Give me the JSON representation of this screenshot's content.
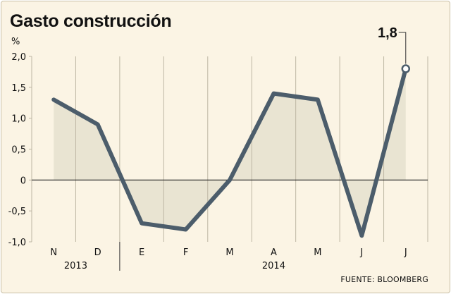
{
  "chart_data": {
    "type": "line",
    "title": "Gasto construcción",
    "ylabel": "%",
    "source": "FUENTE: BLOOMBERG",
    "categories": [
      "N",
      "D",
      "E",
      "F",
      "M",
      "A",
      "M",
      "J",
      "J"
    ],
    "years": [
      {
        "label": "2013",
        "from": 0,
        "to": 1
      },
      {
        "label": "2014",
        "from": 2,
        "to": 8
      }
    ],
    "series": [
      {
        "values": [
          1.3,
          0.9,
          -0.7,
          -0.8,
          0.0,
          1.4,
          1.3,
          -0.9,
          1.8
        ]
      }
    ],
    "yticks": [
      "2,0",
      "1,5",
      "1,0",
      "0,5",
      "0",
      "-0,5",
      "-1,0"
    ],
    "ylim": [
      -1.0,
      2.0
    ],
    "annotation": {
      "index": 8,
      "label": "1,8"
    },
    "grid": "vertical",
    "colors": {
      "line": "#4c5d6b",
      "fill": "#e9e4d2",
      "grid": "#bdb6a3",
      "background": "#fbf4e4"
    }
  }
}
